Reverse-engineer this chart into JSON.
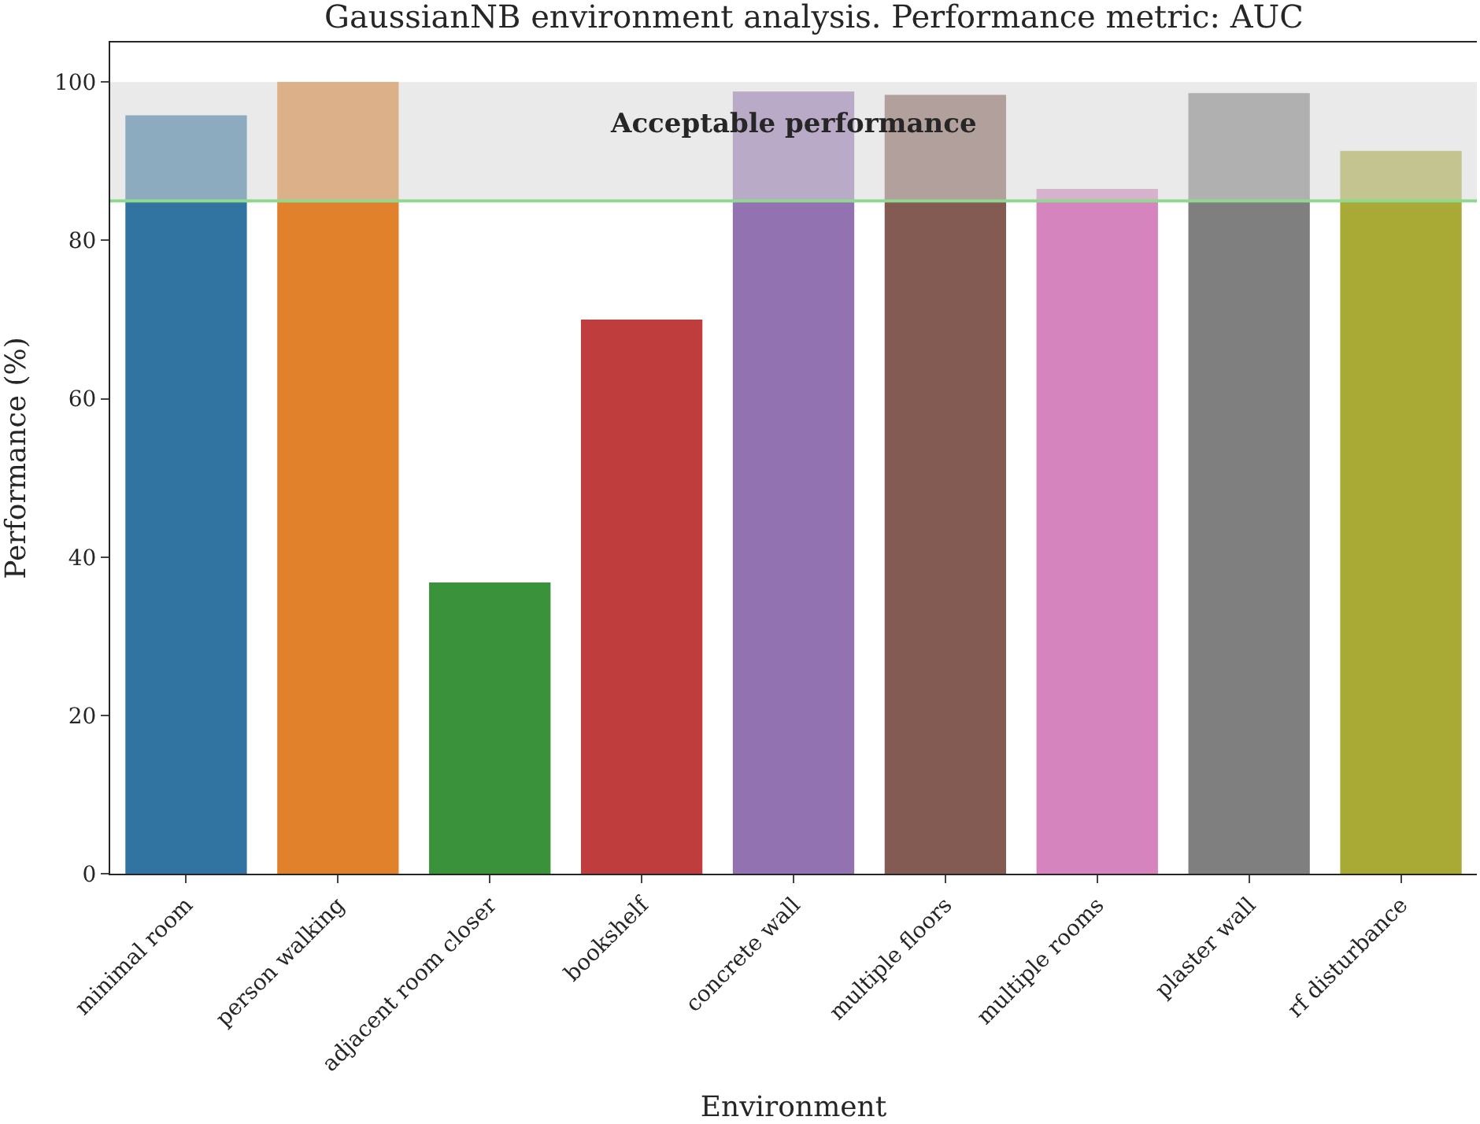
{
  "chart_data": {
    "type": "bar",
    "title": "GaussianNB environment analysis. Performance metric: AUC",
    "xlabel": "Environment",
    "ylabel": "Performance (%)",
    "categories": [
      "minimal room",
      "person walking",
      "adjacent room closer",
      "bookshelf",
      "concrete wall",
      "multiple floors",
      "multiple rooms",
      "plaster wall",
      "rf disturbance"
    ],
    "values": [
      95.8,
      100,
      36.8,
      70.0,
      98.8,
      98.4,
      86.5,
      98.6,
      91.3
    ],
    "colors": [
      "#3274a1",
      "#e1812c",
      "#3a923a",
      "#c03d3e",
      "#9372b2",
      "#845b53",
      "#d684bd",
      "#7f7f7f",
      "#a9aa35"
    ],
    "ylim": [
      0,
      105
    ],
    "yticks": [
      0,
      20,
      40,
      60,
      80,
      100
    ],
    "legend": false,
    "ref_lines": [
      {
        "axis": "y",
        "value": 85,
        "color": "#90d890"
      }
    ],
    "bands": [
      {
        "axis": "y",
        "from": 85,
        "to": 100,
        "label": "Acceptable performance",
        "color": "#d8d8d8"
      }
    ]
  }
}
